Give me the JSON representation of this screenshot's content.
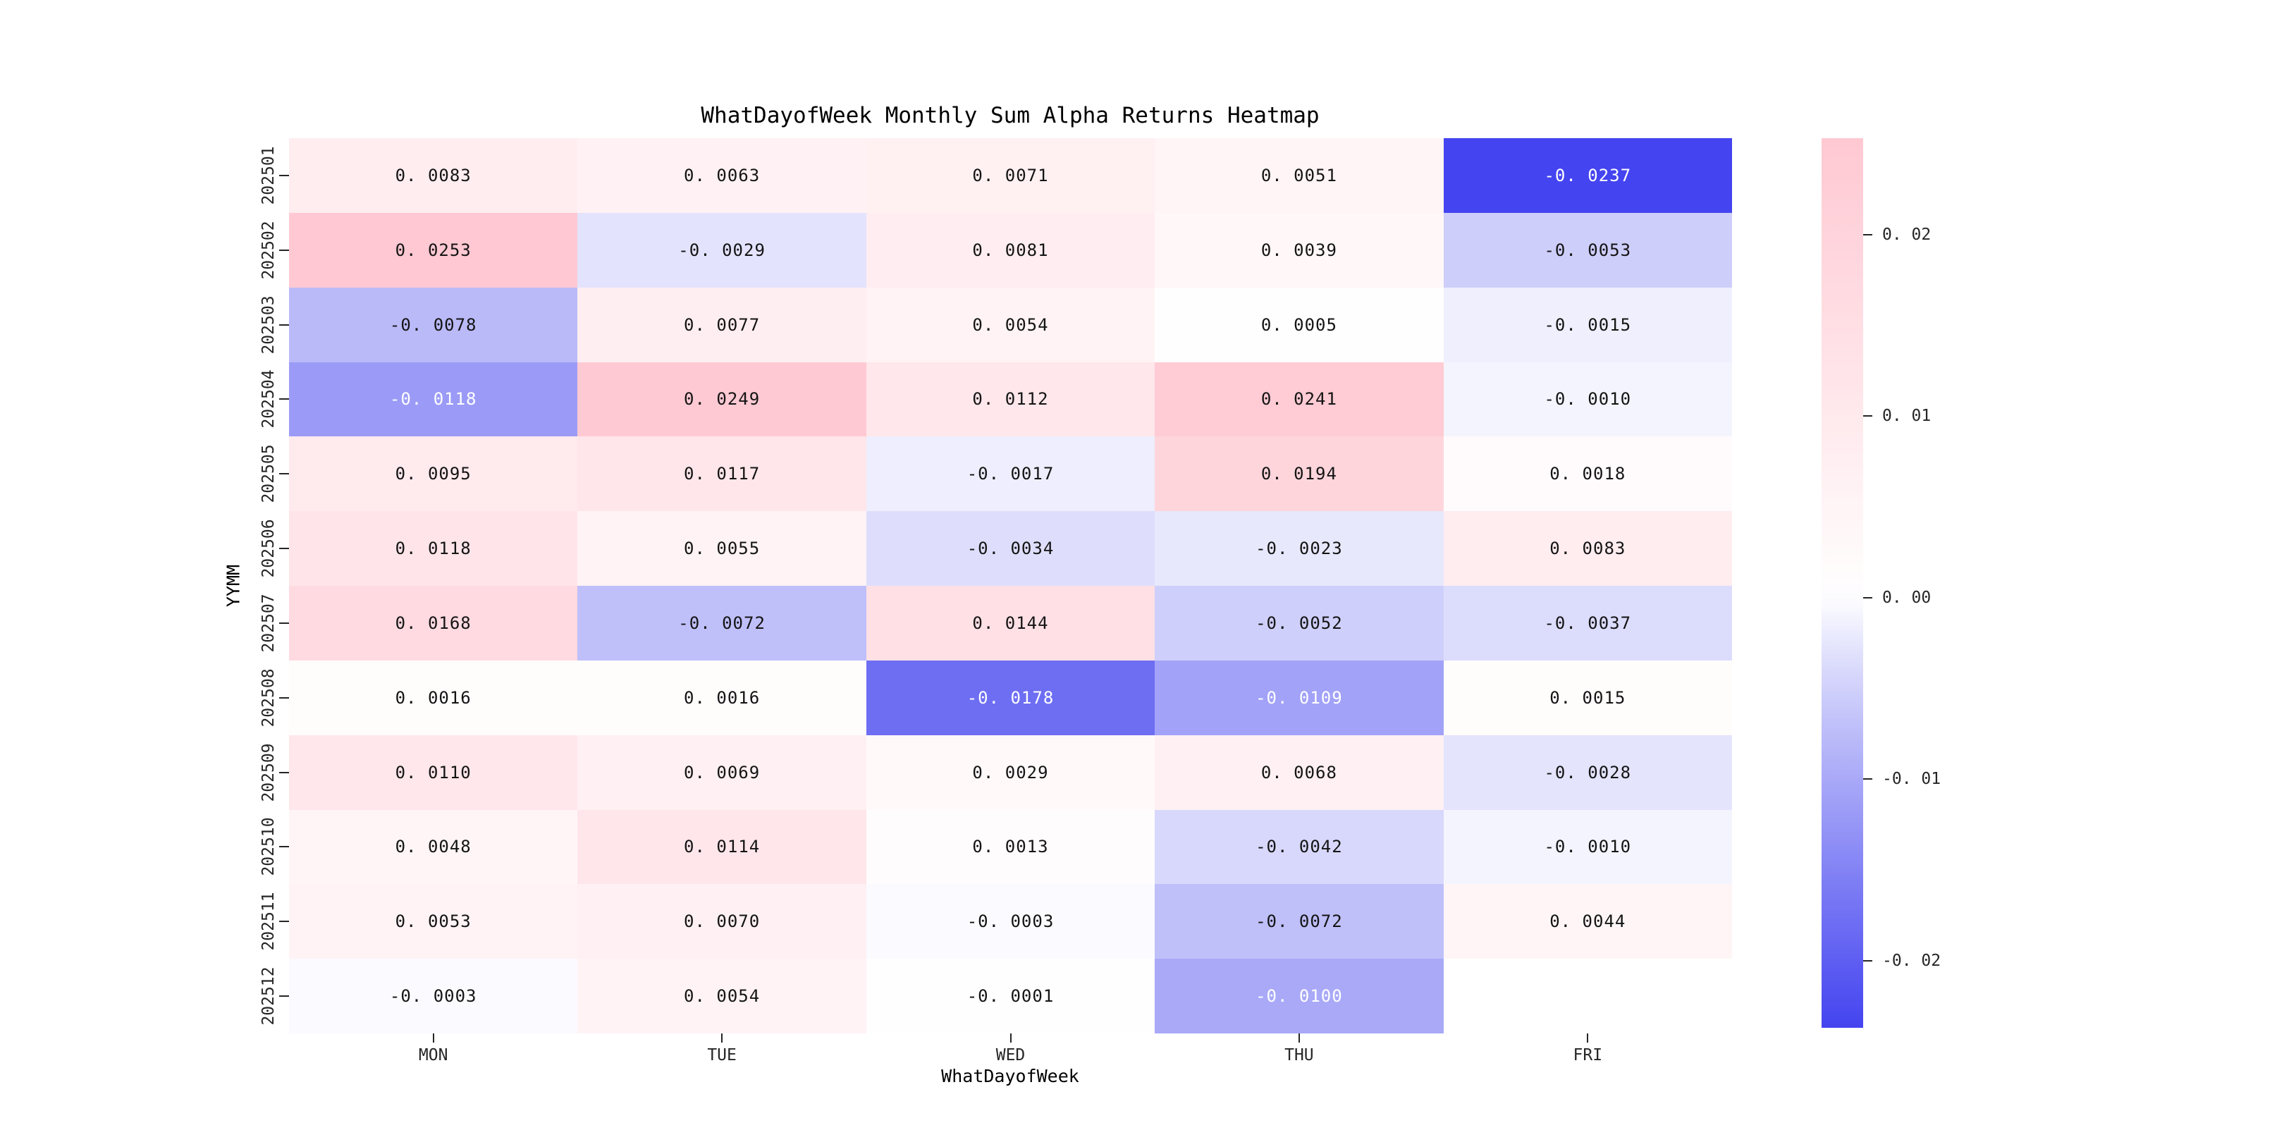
{
  "title": "WhatDayofWeek Monthly Sum Alpha Returns Heatmap",
  "chart_data": {
    "type": "heatmap",
    "title": "WhatDayofWeek Monthly Sum Alpha Returns Heatmap",
    "xlabel": "WhatDayofWeek",
    "ylabel": "YYMM",
    "x_categories": [
      "MON",
      "TUE",
      "WED",
      "THU",
      "FRI"
    ],
    "y_categories": [
      "202501",
      "202502",
      "202503",
      "202504",
      "202505",
      "202506",
      "202507",
      "202508",
      "202509",
      "202510",
      "202511",
      "202512"
    ],
    "values": [
      [
        0.0083,
        0.0063,
        0.0071,
        0.0051,
        -0.0237
      ],
      [
        0.0253,
        -0.0029,
        0.0081,
        0.0039,
        -0.0053
      ],
      [
        -0.0078,
        0.0077,
        0.0054,
        0.0005,
        -0.0015
      ],
      [
        -0.0118,
        0.0249,
        0.0112,
        0.0241,
        -0.001
      ],
      [
        0.0095,
        0.0117,
        -0.0017,
        0.0194,
        0.0018
      ],
      [
        0.0118,
        0.0055,
        -0.0034,
        -0.0023,
        0.0083
      ],
      [
        0.0168,
        -0.0072,
        0.0144,
        -0.0052,
        -0.0037
      ],
      [
        0.0016,
        0.0016,
        -0.0178,
        -0.0109,
        0.0015
      ],
      [
        0.011,
        0.0069,
        0.0029,
        0.0068,
        -0.0028
      ],
      [
        0.0048,
        0.0114,
        0.0013,
        -0.0042,
        -0.001
      ],
      [
        0.0053,
        0.007,
        -0.0003,
        -0.0072,
        0.0044
      ],
      [
        -0.0003,
        0.0054,
        -0.0001,
        -0.01,
        null
      ]
    ],
    "value_format_decimals": 4,
    "colorbar": {
      "position": "right",
      "tick_values": [
        0.02,
        0.01,
        0.0,
        -0.01,
        -0.02
      ],
      "tick_format_decimals": 2,
      "vmin": -0.0237,
      "vmax": 0.0253
    },
    "colors": {
      "positive_end": "#ffc8d2",
      "mid": "#ffffff",
      "negative_end": "#4444f0",
      "background": "#ffffff",
      "annotation_dark": "#141414",
      "annotation_light": "#ffffff",
      "tick": "#262626"
    },
    "white_text_threshold": -0.0095,
    "grid": false
  }
}
